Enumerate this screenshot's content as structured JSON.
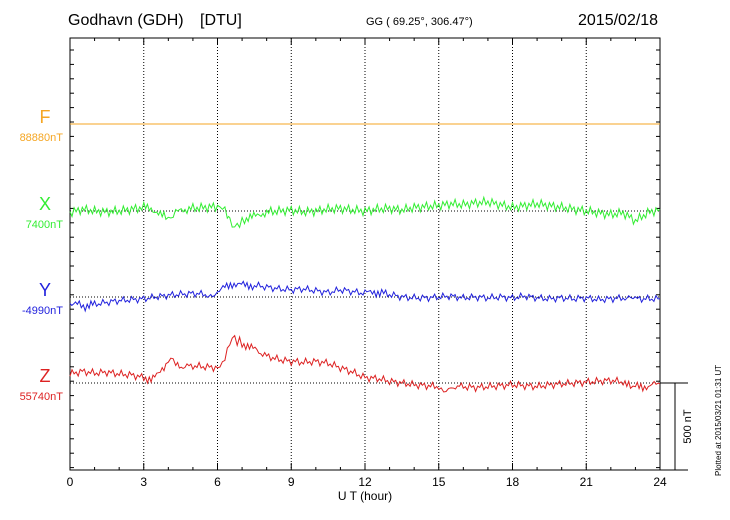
{
  "header": {
    "station": "Godhavn (GDH)",
    "institute": "[DTU]",
    "coords": "GG ( 69.25°, 306.47°)",
    "date": "2015/02/18"
  },
  "plot_note": "Plotted at 2015/03/21 01:31  UT",
  "chart_data": {
    "type": "line",
    "xlabel": "U T (hour)",
    "xlim": [
      0,
      24
    ],
    "xticks": [
      0,
      3,
      6,
      9,
      12,
      15,
      18,
      21,
      24
    ],
    "grid": true,
    "scale_bar": "500 nT",
    "series": [
      {
        "name": "F",
        "baseline_label": "88880nT",
        "color": "#f5a623",
        "x": [
          0,
          24
        ],
        "y": [
          0,
          0
        ]
      },
      {
        "name": "X",
        "baseline_label": "7400nT",
        "color": "#33ee33",
        "x": [
          0,
          0.5,
          1,
          1.5,
          2,
          2.5,
          3,
          3.3,
          3.6,
          3.9,
          4.1,
          4.3,
          4.6,
          5,
          5.5,
          6,
          6.2,
          6.4,
          6.5,
          6.7,
          6.9,
          7.1,
          7.4,
          7.7,
          8,
          8.5,
          9,
          9.5,
          10,
          10.5,
          11,
          11.5,
          12,
          12.5,
          13,
          13.5,
          14,
          14.5,
          15,
          15.5,
          16,
          16.5,
          17,
          17.5,
          18,
          18.5,
          19,
          19.5,
          20,
          20.5,
          21,
          21.5,
          22,
          22.5,
          23,
          23.5,
          24
        ],
        "y": [
          -10,
          10,
          0,
          -5,
          0,
          10,
          20,
          15,
          -10,
          -40,
          -40,
          -10,
          5,
          15,
          20,
          25,
          20,
          -15,
          -60,
          -90,
          -70,
          -50,
          -35,
          -20,
          -5,
          0,
          5,
          -5,
          0,
          10,
          15,
          5,
          0,
          10,
          15,
          5,
          20,
          25,
          30,
          40,
          35,
          45,
          50,
          35,
          20,
          30,
          40,
          30,
          20,
          10,
          0,
          -10,
          -20,
          -10,
          -55,
          -10,
          10
        ]
      },
      {
        "name": "Y",
        "baseline_label": "-4990nT",
        "color": "#2222dd",
        "x": [
          0,
          0.3,
          0.7,
          1,
          1.5,
          2,
          2.5,
          3,
          3.5,
          4,
          4.5,
          5,
          5.5,
          5.8,
          6,
          6.3,
          6.6,
          6.9,
          7.2,
          7.5,
          8,
          8.5,
          9,
          9.5,
          10,
          10.5,
          11,
          11.5,
          12,
          12.3,
          12.6,
          13,
          13.5,
          14,
          14.5,
          15,
          15.5,
          16,
          16.5,
          17,
          17.5,
          18,
          18.5,
          19,
          19.5,
          20,
          20.5,
          21,
          21.5,
          22,
          22.5,
          22.8,
          23,
          23.5,
          24
        ],
        "y": [
          -35,
          -40,
          -55,
          -40,
          -30,
          -20,
          -15,
          -10,
          0,
          10,
          15,
          20,
          15,
          5,
          20,
          55,
          75,
          70,
          60,
          65,
          55,
          45,
          40,
          45,
          35,
          25,
          40,
          30,
          20,
          30,
          25,
          15,
          0,
          -5,
          -5,
          0,
          5,
          -5,
          0,
          -5,
          0,
          -5,
          5,
          -5,
          -10,
          -5,
          -10,
          -5,
          -15,
          -10,
          -5,
          0,
          -10,
          -10,
          -10
        ]
      },
      {
        "name": "Z",
        "baseline_label": "55740nT",
        "color": "#dd2222",
        "x": [
          0,
          0.5,
          1,
          1.5,
          2,
          2.5,
          3,
          3.3,
          3.6,
          3.9,
          4.1,
          4.3,
          4.6,
          5,
          5.5,
          6,
          6.2,
          6.4,
          6.6,
          6.8,
          7,
          7.3,
          7.6,
          8,
          8.5,
          9,
          9.5,
          10,
          10.5,
          11,
          11.5,
          12,
          12.5,
          13,
          13.5,
          14,
          14.5,
          15,
          15.2,
          15.4,
          15.6,
          16,
          16.5,
          17,
          17.5,
          18,
          18.5,
          19,
          19.5,
          20,
          20.5,
          21,
          21.5,
          22,
          22.5,
          22.8,
          23,
          23.3,
          23.6,
          24
        ],
        "y": [
          50,
          65,
          55,
          60,
          50,
          45,
          30,
          25,
          45,
          100,
          140,
          110,
          90,
          95,
          90,
          85,
          105,
          180,
          255,
          235,
          220,
          200,
          180,
          150,
          130,
          120,
          115,
          120,
          110,
          85,
          60,
          30,
          25,
          10,
          0,
          -10,
          -15,
          -20,
          -50,
          -35,
          -20,
          -20,
          -25,
          -20,
          -15,
          -10,
          -15,
          -20,
          -10,
          -5,
          0,
          5,
          10,
          15,
          5,
          -25,
          -20,
          -25,
          -10,
          -5
        ]
      }
    ]
  }
}
